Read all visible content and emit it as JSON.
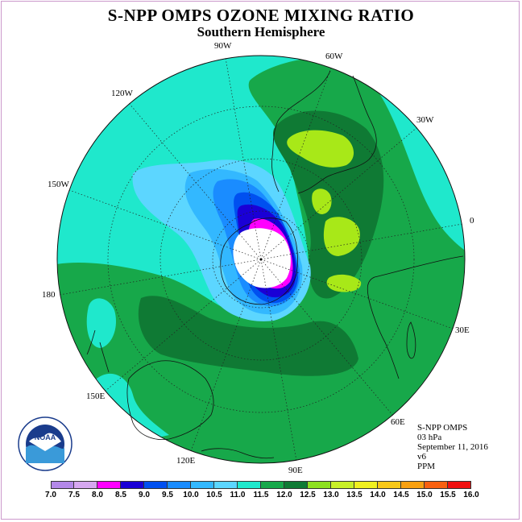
{
  "title": "S-NPP OMPS OZONE MIXING RATIO",
  "subtitle": "Southern Hemisphere",
  "longitude_labels": [
    {
      "id": "90w",
      "text": "90W"
    },
    {
      "id": "60w",
      "text": "60W"
    },
    {
      "id": "120w",
      "text": "120W"
    },
    {
      "id": "30w",
      "text": "30W"
    },
    {
      "id": "150w",
      "text": "150W"
    },
    {
      "id": "0",
      "text": "0"
    },
    {
      "id": "180",
      "text": "180"
    },
    {
      "id": "30e",
      "text": "30E"
    },
    {
      "id": "150e",
      "text": "150E"
    },
    {
      "id": "60e",
      "text": "60E"
    },
    {
      "id": "120e",
      "text": "120E"
    },
    {
      "id": "90e",
      "text": "90E"
    }
  ],
  "info": {
    "instrument": "S-NPP OMPS",
    "level": "03 hPa",
    "date": "September 11, 2016",
    "version": "v6",
    "units": "PPM"
  },
  "logo_text": "NOAA",
  "colorbar": {
    "ticks": [
      "7.0",
      "7.5",
      "8.0",
      "8.5",
      "9.0",
      "9.5",
      "10.0",
      "10.5",
      "11.0",
      "11.5",
      "12.0",
      "12.5",
      "13.0",
      "13.5",
      "14.0",
      "14.5",
      "15.0",
      "15.5",
      "16.0"
    ],
    "colors": [
      "#b388e8",
      "#d6a8f0",
      "#ff00ff",
      "#1a00d6",
      "#0050f0",
      "#1a8cff",
      "#33b8ff",
      "#5cd6ff",
      "#1fe8cc",
      "#17a84a",
      "#0f7a34",
      "#8de020",
      "#c8f028",
      "#f0f020",
      "#f8c818",
      "#f8a010",
      "#f86010",
      "#f01010",
      "#8a4a2a"
    ]
  },
  "map_colors": {
    "background": "#1fe8cc",
    "green": "#17a84a",
    "dark_green": "#0f7a34",
    "lime": "#a8e818",
    "light_blue": "#5cd6ff",
    "mid_blue": "#33b8ff",
    "blue": "#1a8cff",
    "deep_blue": "#0050f0",
    "navy": "#1a00d6",
    "magenta": "#ff00ff",
    "pole_hole": "#ffffff"
  }
}
